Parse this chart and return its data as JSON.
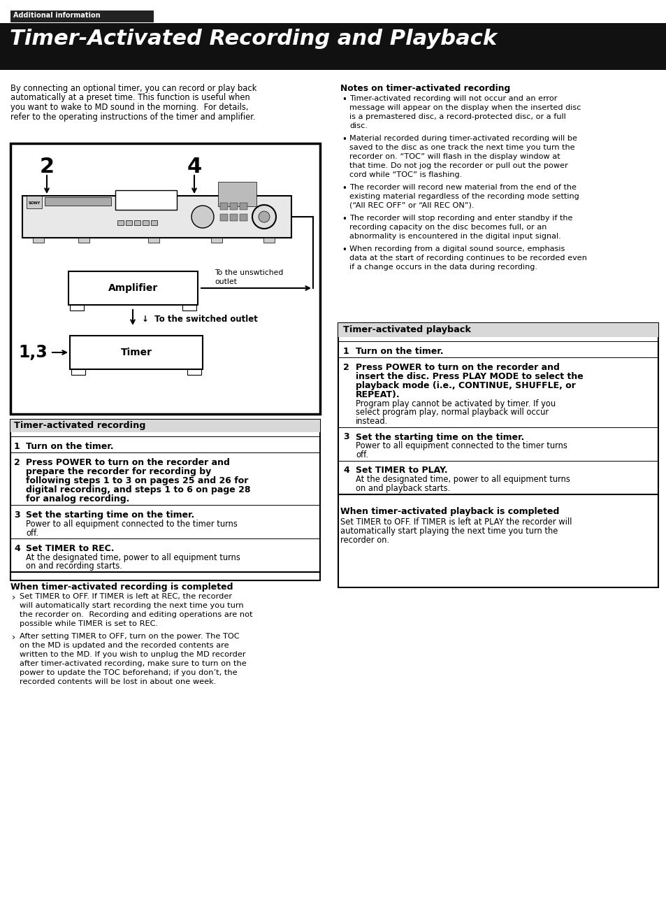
{
  "page_bg": "#ffffff",
  "header_text": "Timer-Activated Recording and Playback",
  "subheader_text": "Additional information",
  "intro_text": "By connecting an optional timer, you can record or play back\nautomatically at a preset time. This function is useful when\nyou want to wake to MD sound in the morning.  For details,\nrefer to the operating instructions of the timer and amplifier.",
  "notes_title": "Notes on timer-activated recording",
  "notes_bullets": [
    "Timer-activated recording will not occur and an error\nmessage will appear on the display when the inserted disc\nis a premastered disc, a record-protected disc, or a full\ndisc.",
    "Material recorded during timer-activated recording will be\nsaved to the disc as one track the next time you turn the\nrecorder on. “TOC” will flash in the display window at\nthat time. Do not jog the recorder or pull out the power\ncord while “TOC” is flashing.",
    "The recorder will record new material from the end of the\nexisting material regardless of the recording mode setting\n(“All REC OFF” or “All REC ON”).",
    "The recorder will stop recording and enter standby if the\nrecording capacity on the disc becomes full, or an\nabnormality is encountered in the digital input signal.",
    "When recording from a digital sound source, emphasis\ndata at the start of recording continues to be recorded even\nif a change occurs in the data during recording."
  ],
  "rec_section_title": "Timer-activated recording",
  "rec_steps": [
    {
      "num": "1",
      "bold": "Turn on the timer.",
      "regular": ""
    },
    {
      "num": "2",
      "bold": "Press POWER to turn on the recorder and\nprepare the recorder for recording by\nfollowing steps 1 to 3 on pages 25 and 26 for\ndigital recording, and steps 1 to 6 on page 28\nfor analog recording.",
      "regular": ""
    },
    {
      "num": "3",
      "bold": "Set the starting time on the timer.",
      "regular": "Power to all equipment connected to the timer turns\noff."
    },
    {
      "num": "4",
      "bold": "Set TIMER to REC.",
      "regular": "At the designated time, power to all equipment turns\non and recording starts."
    }
  ],
  "when_rec_title": "When timer-activated recording is completed",
  "when_rec_bullets": [
    "Set TIMER to OFF. If TIMER is left at REC, the recorder\nwill automatically start recording the next time you turn\nthe recorder on.  Recording and editing operations are not\npossible while TIMER is set to REC.",
    "After setting TIMER to OFF, turn on the power. The TOC\non the MD is updated and the recorded contents are\nwritten to the MD. If you wish to unplug the MD recorder\nafter timer-activated recording, make sure to turn on the\npower to update the TOC beforehand; if you don’t, the\nrecorded contents will be lost in about one week."
  ],
  "play_section_title": "Timer-activated playback",
  "play_steps": [
    {
      "num": "1",
      "bold": "Turn on the timer.",
      "regular": ""
    },
    {
      "num": "2",
      "bold": "Press POWER to turn on the recorder and\ninsert the disc. Press PLAY MODE to select the\nplayback mode (i.e., CONTINUE, SHUFFLE, or\nREPEAT).",
      "regular": "Program play cannot be activated by timer. If you\nselect program play, normal playback will occur\ninstead."
    },
    {
      "num": "3",
      "bold": "Set the starting time on the timer.",
      "regular": "Power to all equipment connected to the timer turns\noff."
    },
    {
      "num": "4",
      "bold": "Set TIMER to PLAY.",
      "regular": "At the designated time, power to all equipment turns\non and playback starts."
    }
  ],
  "when_play_title": "When timer-activated playback is completed",
  "when_play_text": "Set TIMER to OFF. If TIMER is left at PLAY the recorder will\nautomatically start playing the next time you turn the\nrecorder on."
}
